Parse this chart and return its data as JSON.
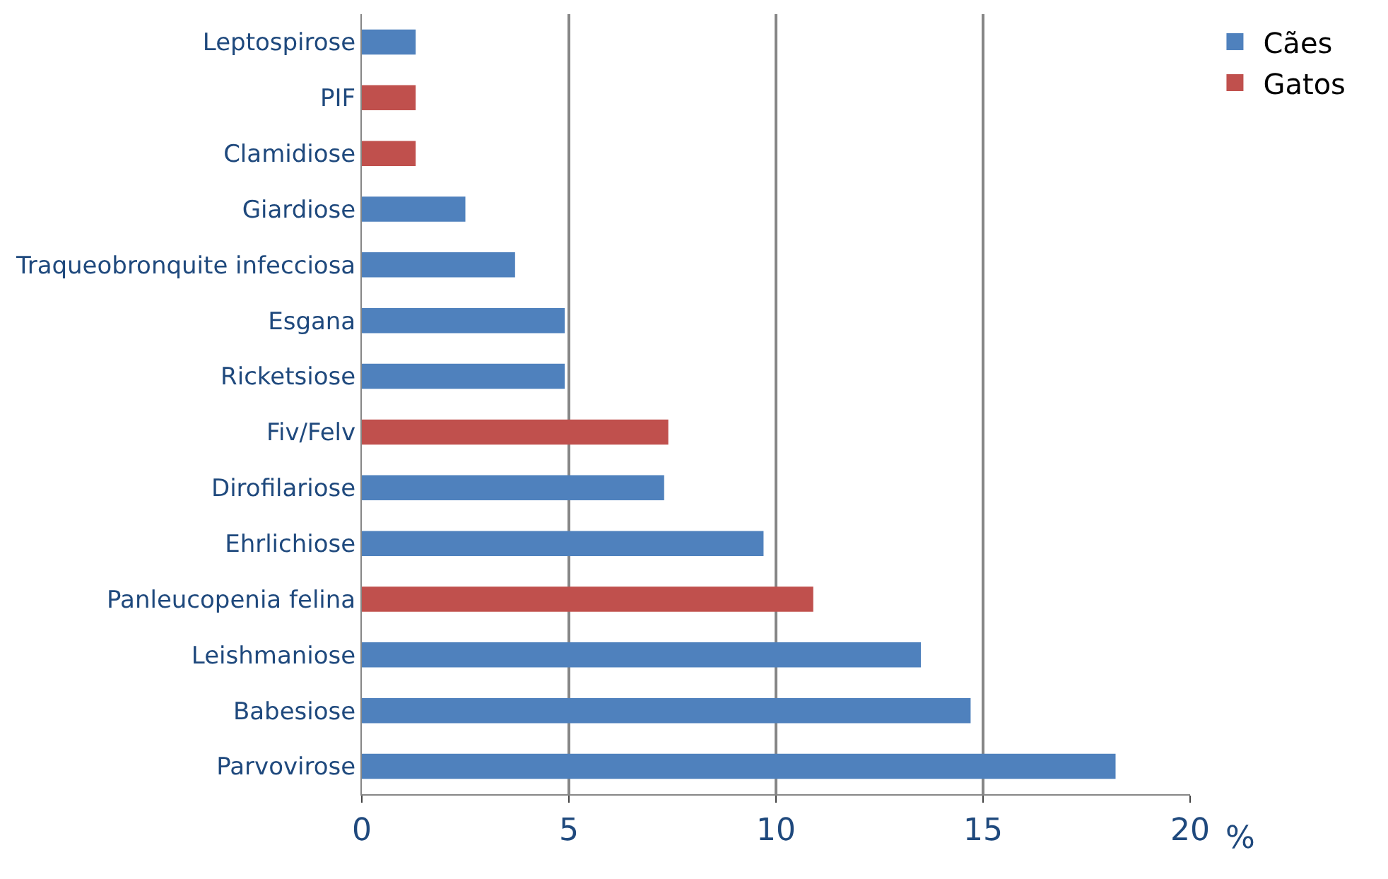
{
  "chart_data": {
    "type": "bar",
    "orientation": "horizontal",
    "xlabel": "%",
    "categories": [
      "Leptospirose",
      "PIF",
      "Clamidiose",
      "Giardiose",
      "Traqueobronquite infecciosa",
      "Esgana",
      "Ricketsiose",
      "Fiv/Felv",
      "Dirofilariose",
      "Ehrlichiose",
      "Panleucopenia felina",
      "Leishmaniose",
      "Babesiose",
      "Parvovirose"
    ],
    "series": [
      {
        "name": "Cães",
        "color": "#4f81bd",
        "values": [
          1.3,
          null,
          null,
          2.5,
          3.7,
          4.9,
          4.9,
          null,
          7.3,
          9.7,
          null,
          13.5,
          14.7,
          18.2
        ]
      },
      {
        "name": "Gatos",
        "color": "#c0504d",
        "values": [
          null,
          1.3,
          1.3,
          null,
          null,
          null,
          null,
          7.4,
          null,
          null,
          10.9,
          null,
          null,
          null
        ]
      }
    ],
    "xlim": [
      0,
      20
    ],
    "xticks": [
      0,
      5,
      10,
      15,
      20
    ],
    "grid": "x",
    "legend": "top right"
  }
}
